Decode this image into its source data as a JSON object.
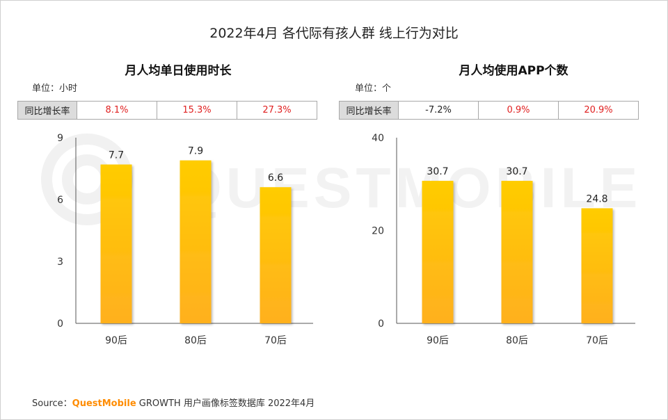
{
  "title": "2022年4月 各代际有孩人群 线上行为对比",
  "charts": [
    {
      "title": "月人均单日使用时长",
      "unit_label": "单位：小时",
      "yoy_label": "同比增长率",
      "yoy": [
        "8.1%",
        "15.3%",
        "27.3%"
      ],
      "yoy_colors": [
        "#e02020",
        "#e02020",
        "#e02020"
      ]
    },
    {
      "title": "月人均使用APP个数",
      "unit_label": "单位：个",
      "yoy_label": "同比增长率",
      "yoy": [
        "-7.2%",
        "0.9%",
        "20.9%"
      ],
      "yoy_colors": [
        "#222222",
        "#e02020",
        "#e02020"
      ]
    }
  ],
  "chart_data": [
    {
      "type": "bar",
      "title": "月人均单日使用时长",
      "categories": [
        "90后",
        "80后",
        "70后"
      ],
      "values": [
        7.7,
        7.9,
        6.6
      ],
      "value_labels": [
        "7.7",
        "7.9",
        "6.6"
      ],
      "yticks": [
        0,
        3,
        6,
        9
      ],
      "ylim": [
        0,
        9
      ],
      "xlabel": "",
      "ylabel": ""
    },
    {
      "type": "bar",
      "title": "月人均使用APP个数",
      "categories": [
        "90后",
        "80后",
        "70后"
      ],
      "values": [
        30.7,
        30.7,
        24.8
      ],
      "value_labels": [
        "30.7",
        "30.7",
        "24.8"
      ],
      "yticks": [
        0,
        20,
        40
      ],
      "ylim": [
        0,
        40
      ],
      "xlabel": "",
      "ylabel": ""
    }
  ],
  "watermark": "QUESTMOBILE",
  "source": {
    "prefix": "Source：",
    "brand": "QuestMobile",
    "rest": " GROWTH 用户画像标签数据库 2022年4月"
  },
  "colors": {
    "bar_top": "#ffcc00",
    "bar_bottom": "#ffb01f",
    "negative": "#222222",
    "positive": "#e02020"
  }
}
